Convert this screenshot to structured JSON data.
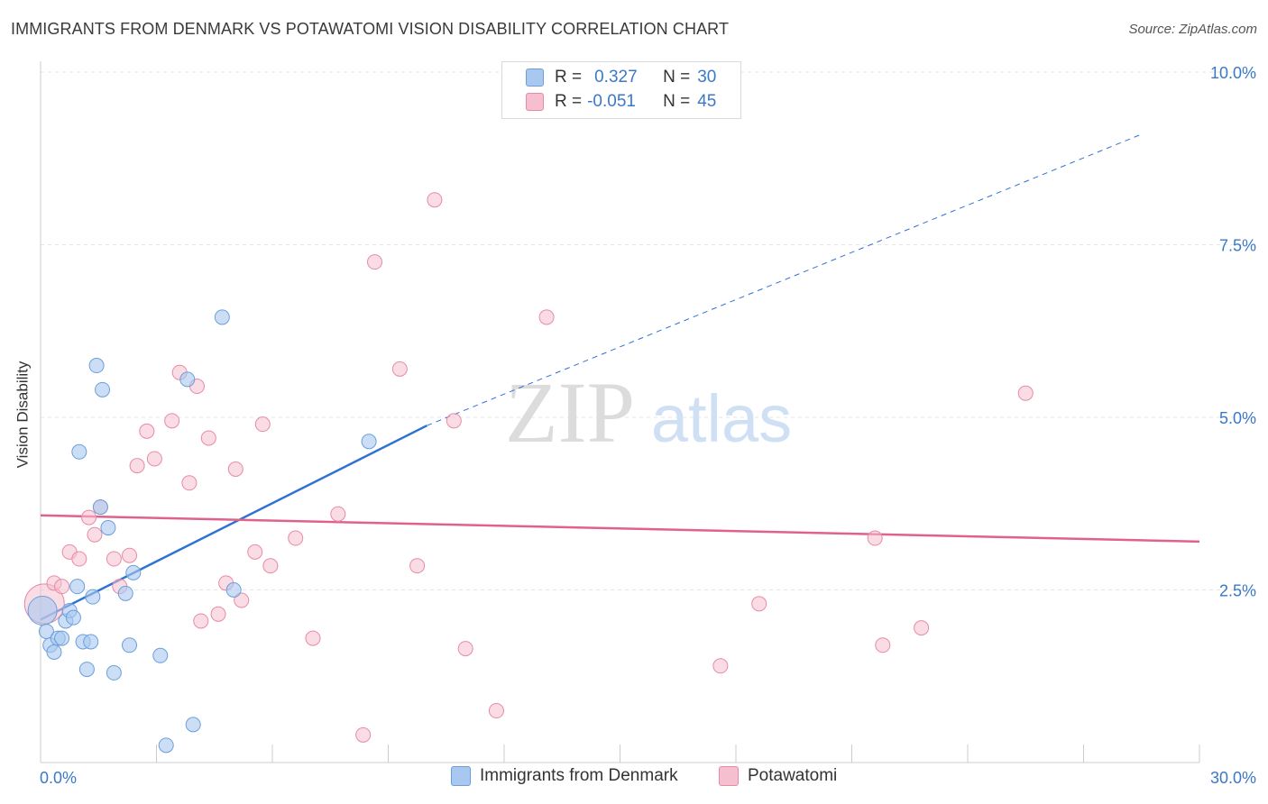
{
  "header": {
    "title": "IMMIGRANTS FROM DENMARK VS POTAWATOMI VISION DISABILITY CORRELATION CHART",
    "source": "Source: ZipAtlas.com"
  },
  "legend": {
    "series1": {
      "r_label": "R =",
      "r_value": "0.327",
      "n_label": "N =",
      "n_value": "30"
    },
    "series2": {
      "r_label": "R =",
      "r_value": "-0.051",
      "n_label": "N =",
      "n_value": "45"
    }
  },
  "watermark": {
    "part1": "ZIP",
    "part2": "atlas"
  },
  "colors": {
    "series1_fill": "#a9c8ef",
    "series1_stroke": "#6a9fdc",
    "series1_line": "#2f72d3",
    "series2_fill": "#f6bfd0",
    "series2_stroke": "#e88aa6",
    "series2_line": "#e0628c",
    "grid": "#e6e6e6",
    "tick_label": "#3b78c9"
  },
  "chart_data": {
    "type": "scatter",
    "title": "IMMIGRANTS FROM DENMARK VS POTAWATOMI VISION DISABILITY CORRELATION CHART",
    "xlabel": "",
    "ylabel": "Vision Disability",
    "xlim": [
      0,
      30
    ],
    "ylim": [
      0,
      10
    ],
    "x_tick_labels": [
      "0.0%",
      "30.0%"
    ],
    "y_ticks": [
      2.5,
      5.0,
      7.5,
      10.0
    ],
    "y_tick_labels": [
      "2.5%",
      "5.0%",
      "7.5%",
      "10.0%"
    ],
    "series": [
      {
        "name": "Immigrants from Denmark",
        "r": 0.327,
        "n": 30,
        "trend": {
          "x0": 0,
          "y0": 2.07,
          "x1": 10,
          "y1": 4.88,
          "dash_to_x": 28.5,
          "dash_to_y": 9.1
        },
        "points": [
          [
            0.05,
            2.2
          ],
          [
            0.15,
            1.9
          ],
          [
            0.25,
            1.7
          ],
          [
            0.35,
            1.6
          ],
          [
            0.45,
            1.8
          ],
          [
            0.55,
            1.8
          ],
          [
            0.65,
            2.05
          ],
          [
            0.75,
            2.2
          ],
          [
            0.85,
            2.1
          ],
          [
            0.95,
            2.55
          ],
          [
            1.0,
            4.5
          ],
          [
            1.1,
            1.75
          ],
          [
            1.2,
            1.35
          ],
          [
            1.3,
            1.75
          ],
          [
            1.35,
            2.4
          ],
          [
            1.45,
            5.75
          ],
          [
            1.55,
            3.7
          ],
          [
            1.6,
            5.4
          ],
          [
            1.75,
            3.4
          ],
          [
            1.9,
            1.3
          ],
          [
            2.2,
            2.45
          ],
          [
            2.3,
            1.7
          ],
          [
            2.4,
            2.75
          ],
          [
            3.1,
            1.55
          ],
          [
            3.25,
            0.25
          ],
          [
            3.8,
            5.55
          ],
          [
            3.95,
            0.55
          ],
          [
            4.7,
            6.45
          ],
          [
            5.0,
            2.5
          ],
          [
            8.5,
            4.65
          ]
        ]
      },
      {
        "name": "Potawatomi",
        "r": -0.051,
        "n": 45,
        "trend": {
          "x0": 0,
          "y0": 3.58,
          "x1": 30,
          "y1": 3.2
        },
        "points": [
          [
            0.1,
            2.3
          ],
          [
            0.35,
            2.6
          ],
          [
            0.55,
            2.55
          ],
          [
            0.75,
            3.05
          ],
          [
            1.0,
            2.95
          ],
          [
            1.25,
            3.55
          ],
          [
            1.4,
            3.3
          ],
          [
            1.55,
            3.7
          ],
          [
            1.9,
            2.95
          ],
          [
            2.05,
            2.55
          ],
          [
            2.3,
            3.0
          ],
          [
            2.5,
            4.3
          ],
          [
            2.75,
            4.8
          ],
          [
            2.95,
            4.4
          ],
          [
            3.4,
            4.95
          ],
          [
            3.6,
            5.65
          ],
          [
            3.85,
            4.05
          ],
          [
            4.05,
            5.45
          ],
          [
            4.15,
            2.05
          ],
          [
            4.35,
            4.7
          ],
          [
            4.6,
            2.15
          ],
          [
            4.8,
            2.6
          ],
          [
            5.05,
            4.25
          ],
          [
            5.2,
            2.35
          ],
          [
            5.55,
            3.05
          ],
          [
            5.75,
            4.9
          ],
          [
            5.95,
            2.85
          ],
          [
            6.6,
            3.25
          ],
          [
            7.05,
            1.8
          ],
          [
            7.7,
            3.6
          ],
          [
            8.35,
            0.4
          ],
          [
            8.65,
            7.25
          ],
          [
            9.3,
            5.7
          ],
          [
            9.75,
            2.85
          ],
          [
            10.2,
            8.15
          ],
          [
            10.7,
            4.95
          ],
          [
            11.0,
            1.65
          ],
          [
            11.8,
            0.75
          ],
          [
            13.1,
            6.45
          ],
          [
            17.6,
            1.4
          ],
          [
            18.6,
            2.3
          ],
          [
            21.6,
            3.25
          ],
          [
            21.8,
            1.7
          ],
          [
            22.8,
            1.95
          ],
          [
            25.5,
            5.35
          ]
        ]
      }
    ]
  },
  "bottom_legend": {
    "item1": "Immigrants from Denmark",
    "item2": "Potawatomi"
  }
}
